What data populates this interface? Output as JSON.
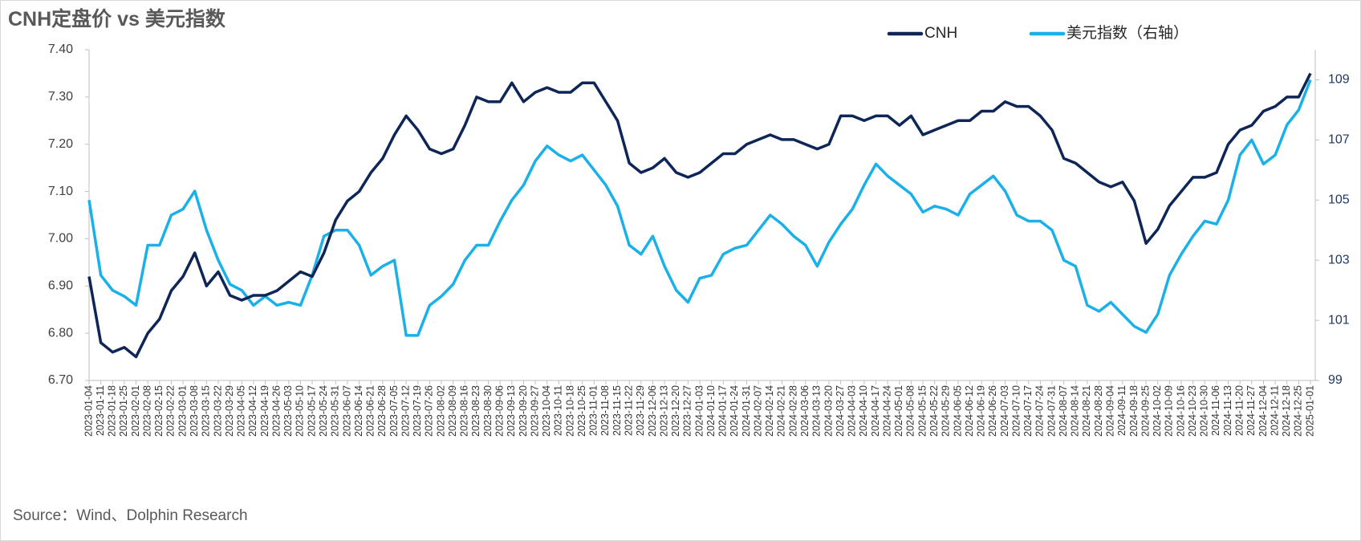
{
  "chart_data": {
    "type": "line",
    "title": "CNH定盘价 vs 美元指数",
    "source": "Source：Wind、Dolphin Research",
    "categories": [
      "2023-01-04",
      "2023-01-11",
      "2023-01-18",
      "2023-01-25",
      "2023-02-01",
      "2023-02-08",
      "2023-02-15",
      "2023-02-22",
      "2023-03-01",
      "2023-03-08",
      "2023-03-15",
      "2023-03-22",
      "2023-03-29",
      "2023-04-05",
      "2023-04-12",
      "2023-04-19",
      "2023-04-26",
      "2023-05-03",
      "2023-05-10",
      "2023-05-17",
      "2023-05-24",
      "2023-05-31",
      "2023-06-07",
      "2023-06-14",
      "2023-06-21",
      "2023-06-28",
      "2023-07-05",
      "2023-07-12",
      "2023-07-19",
      "2023-07-26",
      "2023-08-02",
      "2023-08-09",
      "2023-08-16",
      "2023-08-23",
      "2023-08-30",
      "2023-09-06",
      "2023-09-13",
      "2023-09-20",
      "2023-09-27",
      "2023-10-04",
      "2023-10-11",
      "2023-10-18",
      "2023-10-25",
      "2023-11-01",
      "2023-11-08",
      "2023-11-15",
      "2023-11-22",
      "2023-11-29",
      "2023-12-06",
      "2023-12-13",
      "2023-12-20",
      "2023-12-27",
      "2024-01-03",
      "2024-01-10",
      "2024-01-17",
      "2024-01-24",
      "2024-01-31",
      "2024-02-07",
      "2024-02-14",
      "2024-02-21",
      "2024-02-28",
      "2024-03-06",
      "2024-03-13",
      "2024-03-20",
      "2024-03-27",
      "2024-04-03",
      "2024-04-10",
      "2024-04-17",
      "2024-04-24",
      "2024-05-01",
      "2024-05-08",
      "2024-05-15",
      "2024-05-22",
      "2024-05-29",
      "2024-06-05",
      "2024-06-12",
      "2024-06-19",
      "2024-06-26",
      "2024-07-03",
      "2024-07-10",
      "2024-07-17",
      "2024-07-24",
      "2024-07-31",
      "2024-08-07",
      "2024-08-14",
      "2024-08-21",
      "2024-08-28",
      "2024-09-04",
      "2024-09-11",
      "2024-09-18",
      "2024-09-25",
      "2024-10-02",
      "2024-10-09",
      "2024-10-16",
      "2024-10-23",
      "2024-10-30",
      "2024-11-06",
      "2024-11-13",
      "2024-11-20",
      "2024-11-27",
      "2024-12-04",
      "2024-12-11",
      "2024-12-18",
      "2024-12-25",
      "2025-01-01"
    ],
    "series": [
      {
        "name": "CNH",
        "color": "#0d2557",
        "values": [
          6.92,
          6.78,
          6.76,
          6.77,
          6.75,
          6.8,
          6.83,
          6.89,
          6.92,
          6.97,
          6.9,
          6.93,
          6.88,
          6.87,
          6.88,
          6.88,
          6.89,
          6.91,
          6.93,
          6.92,
          6.97,
          7.04,
          7.08,
          7.1,
          7.14,
          7.17,
          7.22,
          7.26,
          7.23,
          7.19,
          7.18,
          7.19,
          7.24,
          7.3,
          7.29,
          7.29,
          7.33,
          7.29,
          7.31,
          7.32,
          7.31,
          7.31,
          7.33,
          7.33,
          7.29,
          7.25,
          7.16,
          7.14,
          7.15,
          7.17,
          7.14,
          7.13,
          7.14,
          7.16,
          7.18,
          7.18,
          7.2,
          7.21,
          7.22,
          7.21,
          7.21,
          7.2,
          7.19,
          7.2,
          7.26,
          7.26,
          7.25,
          7.26,
          7.26,
          7.24,
          7.26,
          7.22,
          7.23,
          7.24,
          7.25,
          7.25,
          7.27,
          7.27,
          7.29,
          7.28,
          7.28,
          7.26,
          7.23,
          7.17,
          7.16,
          7.14,
          7.12,
          7.11,
          7.12,
          7.08,
          6.99,
          7.02,
          7.07,
          7.1,
          7.13,
          7.13,
          7.14,
          7.2,
          7.23,
          7.24,
          7.27,
          7.28,
          7.3,
          7.3,
          7.35
        ]
      },
      {
        "name": "美元指数（右轴）",
        "color": "#1ab0e8",
        "axis": "y2",
        "values": [
          105.0,
          102.5,
          102.0,
          101.8,
          101.5,
          103.5,
          103.5,
          104.5,
          104.7,
          105.3,
          104.0,
          103.0,
          102.2,
          102.0,
          101.5,
          101.8,
          101.5,
          101.6,
          101.5,
          102.5,
          103.8,
          104.0,
          104.0,
          103.5,
          102.5,
          102.8,
          103.0,
          100.5,
          100.5,
          101.5,
          101.8,
          102.2,
          103.0,
          103.5,
          103.5,
          104.3,
          105.0,
          105.5,
          106.3,
          106.8,
          106.5,
          106.3,
          106.5,
          106.0,
          105.5,
          104.8,
          103.5,
          103.2,
          103.8,
          102.8,
          102.0,
          101.6,
          102.4,
          102.5,
          103.2,
          103.4,
          103.5,
          104.0,
          104.5,
          104.2,
          103.8,
          103.5,
          102.8,
          103.6,
          104.2,
          104.7,
          105.5,
          106.2,
          105.8,
          105.5,
          105.2,
          104.6,
          104.8,
          104.7,
          104.5,
          105.2,
          105.5,
          105.8,
          105.3,
          104.5,
          104.3,
          104.3,
          104.0,
          103.0,
          102.8,
          101.5,
          101.3,
          101.6,
          101.2,
          100.8,
          100.6,
          101.2,
          102.5,
          103.2,
          103.8,
          104.3,
          104.2,
          105.0,
          106.5,
          107.0,
          106.2,
          106.5,
          107.5,
          108.0,
          109.0
        ]
      }
    ],
    "ylim": [
      6.7,
      7.4
    ],
    "yticks": [
      {
        "value": 6.7,
        "label": "6.70"
      },
      {
        "value": 6.8,
        "label": "6.80"
      },
      {
        "value": 6.9,
        "label": "6.90"
      },
      {
        "value": 7.0,
        "label": "7.00"
      },
      {
        "value": 7.1,
        "label": "7.10"
      },
      {
        "value": 7.2,
        "label": "7.20"
      },
      {
        "value": 7.3,
        "label": "7.30"
      },
      {
        "value": 7.4,
        "label": "7.40"
      }
    ],
    "y2lim": [
      99,
      110
    ],
    "y2ticks": [
      99,
      101,
      103,
      105,
      107,
      109
    ],
    "grid": false,
    "legend": "top-right"
  }
}
